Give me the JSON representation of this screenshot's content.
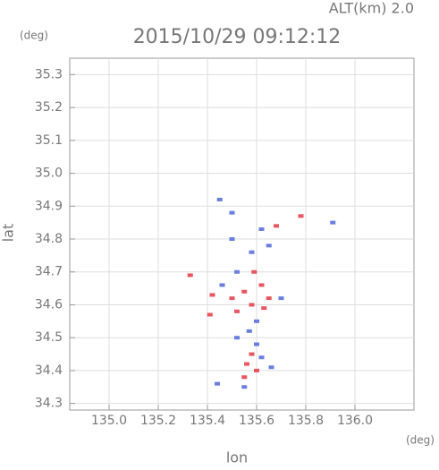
{
  "chart_data": {
    "type": "scatter",
    "title": "2015/10/29 09:12:12",
    "subtitle": "ALT(km) 2.0",
    "y_unit": "(deg)",
    "x_unit": "(deg)",
    "ylabel": "lat",
    "xlabel": "lon",
    "xlim": [
      134.84,
      136.24
    ],
    "ylim": [
      34.28,
      35.35
    ],
    "xticks": [
      {
        "value": 135.0,
        "label": "135.0"
      },
      135.2,
      135.4,
      135.6,
      135.8,
      {
        "value": 136.0,
        "label": "136.0"
      }
    ],
    "yticks": [
      34.3,
      34.4,
      34.5,
      34.6,
      34.7,
      34.8,
      34.9,
      {
        "value": 35.0,
        "label": "35.0"
      },
      35.1,
      35.2,
      35.3
    ],
    "grid": true,
    "series": [
      {
        "color": "#e8555f",
        "x": [
          135.33,
          135.42,
          135.5,
          135.55,
          135.58,
          135.62,
          135.65,
          135.58,
          135.6,
          135.56,
          135.68,
          135.78,
          135.41,
          135.52,
          135.63,
          135.59,
          135.55
        ],
        "y": [
          34.69,
          34.63,
          34.62,
          34.64,
          34.6,
          34.66,
          34.62,
          34.45,
          34.4,
          34.42,
          34.84,
          34.87,
          34.57,
          34.58,
          34.59,
          34.7,
          34.38
        ]
      },
      {
        "color": "#6a7ee0",
        "x": [
          135.45,
          135.91,
          135.5,
          135.62,
          135.65,
          135.52,
          135.6,
          135.57,
          135.6,
          135.52,
          135.44,
          135.66,
          135.7,
          135.46,
          135.55,
          135.62,
          135.58,
          135.5
        ],
        "y": [
          34.92,
          34.85,
          34.88,
          34.83,
          34.78,
          34.7,
          34.55,
          34.52,
          34.48,
          34.5,
          34.36,
          34.41,
          34.62,
          34.66,
          34.35,
          34.44,
          34.76,
          34.8
        ]
      }
    ]
  }
}
